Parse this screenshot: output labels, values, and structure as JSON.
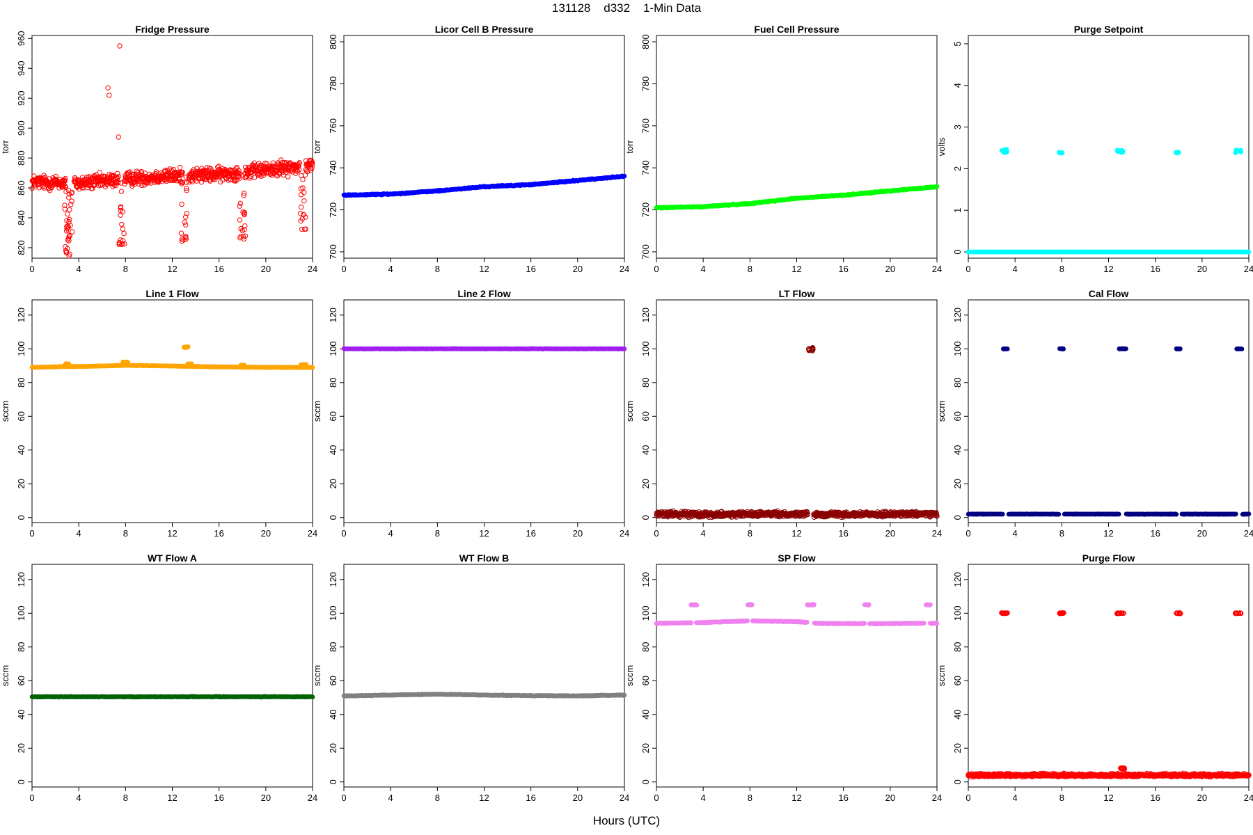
{
  "figure": {
    "title": "131128    d332    1-Min Data",
    "xlabel": "Hours (UTC)"
  },
  "chart_data": [
    {
      "id": "fridge-pressure",
      "type": "scatter",
      "title": "Fridge Pressure",
      "ylabel": "torr",
      "color": "#ff0000",
      "marker": "open-circle",
      "xlim": [
        0,
        24
      ],
      "ylim": [
        813,
        962
      ],
      "xticks": [
        0,
        4,
        8,
        12,
        16,
        20,
        24
      ],
      "yticks": [
        820,
        840,
        860,
        880,
        900,
        920,
        940,
        960
      ],
      "baseline": [
        [
          0,
          864
        ],
        [
          4,
          863
        ],
        [
          8,
          866
        ],
        [
          12,
          868
        ],
        [
          16,
          869
        ],
        [
          20,
          872
        ],
        [
          24,
          875
        ]
      ],
      "jitter": 7,
      "gaps": [
        [
          2.9,
          3.6
        ],
        [
          7.4,
          7.9
        ],
        [
          12.9,
          13.4
        ],
        [
          17.8,
          18.2
        ],
        [
          22.9,
          23.4
        ]
      ],
      "dips": [
        [
          3.0,
          815
        ],
        [
          3.2,
          828
        ],
        [
          7.7,
          822
        ],
        [
          13.0,
          825
        ],
        [
          18.0,
          826
        ],
        [
          23.2,
          832
        ]
      ],
      "outliers": [
        [
          6.5,
          927
        ],
        [
          6.6,
          922
        ],
        [
          7.5,
          955
        ],
        [
          7.4,
          894
        ]
      ]
    },
    {
      "id": "licor-cell-b-pressure",
      "type": "scatter",
      "title": "Licor Cell B Pressure",
      "ylabel": "torr",
      "color": "#0000ff",
      "marker": "filled",
      "xlim": [
        0,
        24
      ],
      "ylim": [
        697,
        803
      ],
      "xticks": [
        0,
        4,
        8,
        12,
        16,
        20,
        24
      ],
      "yticks": [
        700,
        720,
        740,
        760,
        780,
        800
      ],
      "baseline": [
        [
          0,
          727
        ],
        [
          4,
          727.5
        ],
        [
          8,
          729
        ],
        [
          12,
          731
        ],
        [
          16,
          732
        ],
        [
          20,
          734
        ],
        [
          24,
          736
        ]
      ],
      "jitter": 0.4
    },
    {
      "id": "fuel-cell-pressure",
      "type": "scatter",
      "title": "Fuel Cell Pressure",
      "ylabel": "torr",
      "color": "#00ff00",
      "marker": "filled",
      "xlim": [
        0,
        24
      ],
      "ylim": [
        697,
        803
      ],
      "xticks": [
        0,
        4,
        8,
        12,
        16,
        20,
        24
      ],
      "yticks": [
        700,
        720,
        740,
        760,
        780,
        800
      ],
      "baseline": [
        [
          0,
          721
        ],
        [
          4,
          721.5
        ],
        [
          8,
          723
        ],
        [
          12,
          725.5
        ],
        [
          16,
          727
        ],
        [
          20,
          729
        ],
        [
          24,
          731
        ]
      ],
      "jitter": 0.4
    },
    {
      "id": "purge-setpoint",
      "type": "scatter",
      "title": "Purge Setpoint",
      "ylabel": "volts",
      "color": "#00ffff",
      "marker": "filled",
      "xlim": [
        0,
        24
      ],
      "ylim": [
        -0.15,
        5.2
      ],
      "xticks": [
        0,
        4,
        8,
        12,
        16,
        20,
        24
      ],
      "yticks": [
        0,
        1,
        2,
        3,
        4,
        5
      ],
      "baseline": [
        [
          0,
          0
        ],
        [
          24,
          0
        ]
      ],
      "jitter": 0,
      "clusters": [
        [
          3.1,
          2.42,
          0.5,
          0.05
        ],
        [
          7.9,
          2.38,
          0.3,
          0.02
        ],
        [
          13.0,
          2.42,
          0.5,
          0.05
        ],
        [
          17.9,
          2.39,
          0.3,
          0.02
        ],
        [
          23.1,
          2.42,
          0.5,
          0.05
        ]
      ]
    },
    {
      "id": "line-1-flow",
      "type": "scatter",
      "title": "Line 1 Flow",
      "ylabel": "sccm",
      "color": "#ffa500",
      "marker": "filled",
      "xlim": [
        0,
        24
      ],
      "ylim": [
        -3,
        129
      ],
      "xticks": [
        0,
        4,
        8,
        12,
        16,
        20,
        24
      ],
      "yticks": [
        0,
        20,
        40,
        60,
        80,
        100,
        120
      ],
      "baseline": [
        [
          0,
          89
        ],
        [
          3,
          89.5
        ],
        [
          4,
          89.5
        ],
        [
          8,
          90.2
        ],
        [
          12,
          89.8
        ],
        [
          16,
          89.3
        ],
        [
          20,
          89
        ],
        [
          24,
          89
        ]
      ],
      "jitter": 0.2,
      "clusters": [
        [
          3.1,
          91,
          0.5,
          0.4
        ],
        [
          8.0,
          92,
          0.5,
          0.4
        ],
        [
          13.2,
          101,
          0.4,
          0.6
        ],
        [
          13.5,
          91,
          0.4,
          0.4
        ],
        [
          18.0,
          90.2,
          0.4,
          0.3
        ],
        [
          23.2,
          90.6,
          0.5,
          0.3
        ]
      ]
    },
    {
      "id": "line-2-flow",
      "type": "scatter",
      "title": "Line 2 Flow",
      "ylabel": "sccm",
      "color": "#a020f0",
      "marker": "filled",
      "xlim": [
        0,
        24
      ],
      "ylim": [
        -3,
        129
      ],
      "xticks": [
        0,
        4,
        8,
        12,
        16,
        20,
        24
      ],
      "yticks": [
        0,
        20,
        40,
        60,
        80,
        100,
        120
      ],
      "baseline": [
        [
          0,
          100
        ],
        [
          24,
          100
        ]
      ],
      "jitter": 0.2
    },
    {
      "id": "lt-flow",
      "type": "scatter",
      "title": "LT Flow",
      "ylabel": "sccm",
      "color": "#8b0000",
      "marker": "open-circle",
      "xlim": [
        0,
        24
      ],
      "ylim": [
        -3,
        129
      ],
      "xticks": [
        0,
        4,
        8,
        12,
        16,
        20,
        24
      ],
      "yticks": [
        0,
        20,
        40,
        60,
        80,
        100,
        120
      ],
      "baseline": [
        [
          0,
          2
        ],
        [
          24,
          2
        ]
      ],
      "jitter": 2.2,
      "gaps": [
        [
          12.95,
          13.45
        ]
      ],
      "clusters": [
        [
          13.2,
          99.5,
          0.4,
          1.6
        ]
      ]
    },
    {
      "id": "cal-flow",
      "type": "scatter",
      "title": "Cal Flow",
      "ylabel": "sccm",
      "color": "#000080",
      "marker": "filled",
      "xlim": [
        0,
        24
      ],
      "ylim": [
        -3,
        129
      ],
      "xticks": [
        0,
        4,
        8,
        12,
        16,
        20,
        24
      ],
      "yticks": [
        0,
        20,
        40,
        60,
        80,
        100,
        120
      ],
      "baseline": [
        [
          0,
          2
        ],
        [
          24,
          2
        ]
      ],
      "jitter": 0.2,
      "gaps": [
        [
          2.95,
          3.45
        ],
        [
          7.75,
          8.2
        ],
        [
          12.9,
          13.5
        ],
        [
          17.8,
          18.25
        ],
        [
          22.9,
          23.45
        ]
      ],
      "clusters": [
        [
          3.2,
          100,
          0.5,
          0.2
        ],
        [
          8.0,
          100,
          0.4,
          0.2
        ],
        [
          13.2,
          100,
          0.6,
          0.2
        ],
        [
          18.0,
          100,
          0.4,
          0.2
        ],
        [
          23.2,
          100,
          0.5,
          0.2
        ]
      ]
    },
    {
      "id": "wt-flow-a",
      "type": "scatter",
      "title": "WT Flow A",
      "ylabel": "sccm",
      "color": "#006400",
      "marker": "filled",
      "xlim": [
        0,
        24
      ],
      "ylim": [
        -3,
        129
      ],
      "xticks": [
        0,
        4,
        8,
        12,
        16,
        20,
        24
      ],
      "yticks": [
        0,
        20,
        40,
        60,
        80,
        100,
        120
      ],
      "baseline": [
        [
          0,
          50.5
        ],
        [
          24,
          50.5
        ]
      ],
      "jitter": 0.3
    },
    {
      "id": "wt-flow-b",
      "type": "scatter",
      "title": "WT Flow B",
      "ylabel": "sccm",
      "color": "#808080",
      "marker": "filled",
      "xlim": [
        0,
        24
      ],
      "ylim": [
        -3,
        129
      ],
      "xticks": [
        0,
        4,
        8,
        12,
        16,
        20,
        24
      ],
      "yticks": [
        0,
        20,
        40,
        60,
        80,
        100,
        120
      ],
      "baseline": [
        [
          0,
          51
        ],
        [
          4,
          51.5
        ],
        [
          8,
          52
        ],
        [
          12,
          51.5
        ],
        [
          16,
          51.2
        ],
        [
          20,
          51
        ],
        [
          24,
          51.5
        ]
      ],
      "jitter": 0.3
    },
    {
      "id": "sp-flow",
      "type": "scatter",
      "title": "SP Flow",
      "ylabel": "sccm",
      "color": "#ee82ee",
      "marker": "filled",
      "xlim": [
        0,
        24
      ],
      "ylim": [
        -3,
        129
      ],
      "xticks": [
        0,
        4,
        8,
        12,
        16,
        20,
        24
      ],
      "yticks": [
        0,
        20,
        40,
        60,
        80,
        100,
        120
      ],
      "baseline": [
        [
          0,
          94
        ],
        [
          4,
          94.5
        ],
        [
          8,
          95.5
        ],
        [
          12,
          95
        ],
        [
          14,
          94
        ],
        [
          18,
          93.8
        ],
        [
          22,
          94
        ],
        [
          24,
          94
        ]
      ],
      "jitter": 0.3,
      "gaps": [
        [
          3.0,
          3.4
        ],
        [
          7.8,
          8.2
        ],
        [
          12.9,
          13.5
        ],
        [
          17.8,
          18.2
        ],
        [
          22.9,
          23.4
        ]
      ],
      "clusters": [
        [
          3.2,
          105,
          0.5,
          0.3
        ],
        [
          8.0,
          105,
          0.4,
          0.3
        ],
        [
          13.2,
          105,
          0.6,
          0.3
        ],
        [
          18.0,
          105,
          0.4,
          0.3
        ],
        [
          23.2,
          105,
          0.5,
          0.3
        ]
      ]
    },
    {
      "id": "purge-flow",
      "type": "scatter",
      "title": "Purge Flow",
      "ylabel": "sccm",
      "color": "#ff0000",
      "marker": "open-circle",
      "xlim": [
        0,
        24
      ],
      "ylim": [
        -3,
        129
      ],
      "xticks": [
        0,
        4,
        8,
        12,
        16,
        20,
        24
      ],
      "yticks": [
        0,
        20,
        40,
        60,
        80,
        100,
        120
      ],
      "baseline": [
        [
          0,
          4
        ],
        [
          24,
          4
        ]
      ],
      "jitter": 1.3,
      "clusters": [
        [
          3.1,
          100,
          0.5,
          0.3
        ],
        [
          8.0,
          100,
          0.4,
          0.3
        ],
        [
          13.0,
          100,
          0.6,
          0.3
        ],
        [
          18.0,
          100,
          0.4,
          0.3
        ],
        [
          23.1,
          100,
          0.5,
          0.3
        ],
        [
          13.2,
          8,
          0.4,
          1.0
        ]
      ]
    }
  ]
}
